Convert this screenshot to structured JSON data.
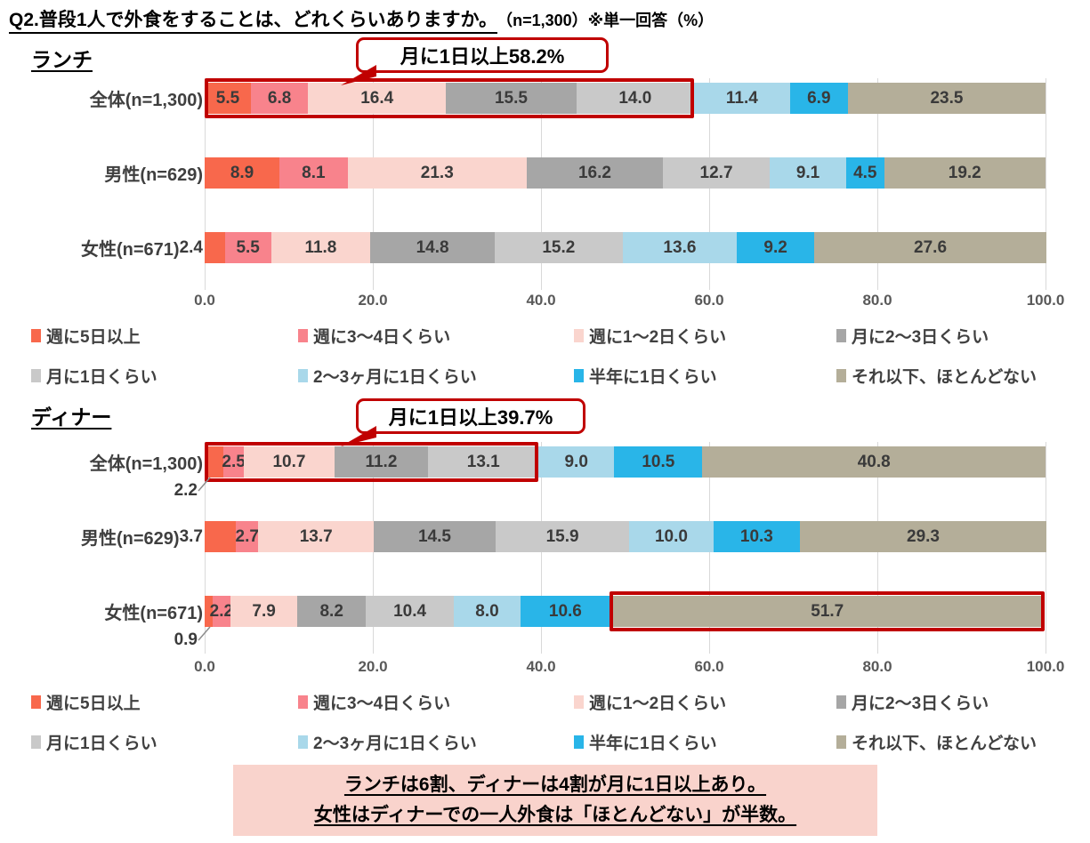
{
  "title": {
    "main": "Q2.普段1人で外食をすることは、どれくらいありますか。",
    "suffix": "（n=1,300）※単一回答（%）"
  },
  "categories": [
    "週に5日以上",
    "週に3〜4日くらい",
    "週に1〜2日くらい",
    "月に2〜3日くらい",
    "月に1日くらい",
    "2〜3ヶ月に1日くらい",
    "半年に1日くらい",
    "それ以下、ほとんどない"
  ],
  "category_colors": [
    "#F8684C",
    "#F8838C",
    "#FAD5CE",
    "#A6A6A6",
    "#C9C9C9",
    "#A9D8EA",
    "#29B5E8",
    "#B4AE99"
  ],
  "accent_colors": {
    "highlight_outline": "#C00000",
    "note_background": "#F9D3CC",
    "gridline": "#D9D9D9"
  },
  "chart_data": [
    {
      "type": "bar",
      "stacked": true,
      "orientation": "horizontal",
      "title": "ランチ",
      "xlim": [
        0,
        100
      ],
      "xticks": [
        "0.0",
        "20.0",
        "40.0",
        "60.0",
        "80.0",
        "100.0"
      ],
      "categories": [
        "週に5日以上",
        "週に3〜4日くらい",
        "週に1〜2日くらい",
        "月に2〜3日くらい",
        "月に1日くらい",
        "2〜3ヶ月に1日くらい",
        "半年に1日くらい",
        "それ以下、ほとんどない"
      ],
      "rows": [
        {
          "label": "全体(n=1,300)",
          "values": [
            5.5,
            6.8,
            16.4,
            15.5,
            14.0,
            11.4,
            6.9,
            23.5
          ],
          "outline": {
            "from": 0,
            "to": 58.2
          }
        },
        {
          "label": "男性(n=629)",
          "values": [
            8.9,
            8.1,
            21.3,
            16.2,
            12.7,
            9.1,
            4.5,
            19.2
          ]
        },
        {
          "label": "女性(n=671)",
          "values": [
            2.4,
            5.5,
            11.8,
            14.8,
            15.2,
            13.6,
            9.2,
            27.6
          ],
          "outside": [
            {
              "index": 0,
              "mode": "inline-left"
            }
          ]
        }
      ],
      "callout": {
        "text": "月に1日以上58.2%"
      }
    },
    {
      "type": "bar",
      "stacked": true,
      "orientation": "horizontal",
      "title": "ディナー",
      "xlim": [
        0,
        100
      ],
      "xticks": [
        "0.0",
        "20.0",
        "40.0",
        "60.0",
        "80.0",
        "100.0"
      ],
      "categories": [
        "週に5日以上",
        "週に3〜4日くらい",
        "週に1〜2日くらい",
        "月に2〜3日くらい",
        "月に1日くらい",
        "2〜3ヶ月に1日くらい",
        "半年に1日くらい",
        "それ以下、ほとんどない"
      ],
      "rows": [
        {
          "label": "全体(n=1,300)",
          "values": [
            2.2,
            2.5,
            10.7,
            11.2,
            13.1,
            9.0,
            10.5,
            40.8
          ],
          "outline": {
            "from": 0,
            "to": 39.7
          },
          "outside": [
            {
              "index": 0,
              "mode": "below-leader"
            }
          ]
        },
        {
          "label": "男性(n=629)",
          "values": [
            3.7,
            2.7,
            13.7,
            14.5,
            15.9,
            10.0,
            10.3,
            29.3
          ],
          "outside": [
            {
              "index": 0,
              "mode": "inline-left"
            }
          ]
        },
        {
          "label": "女性(n=671)",
          "values": [
            0.9,
            2.2,
            7.9,
            8.2,
            10.4,
            8.0,
            10.6,
            51.7
          ],
          "outline": {
            "from": 48.2,
            "to": 99.9
          },
          "outside": [
            {
              "index": 0,
              "mode": "below-leader"
            }
          ]
        }
      ],
      "callout": {
        "text": "月に1日以上39.7%"
      }
    }
  ],
  "note": {
    "lines": [
      "ランチは6割、ディナーは4割が月に1日以上あり。",
      "女性はディナーでの一人外食は「ほとんどない」が半数。"
    ]
  }
}
